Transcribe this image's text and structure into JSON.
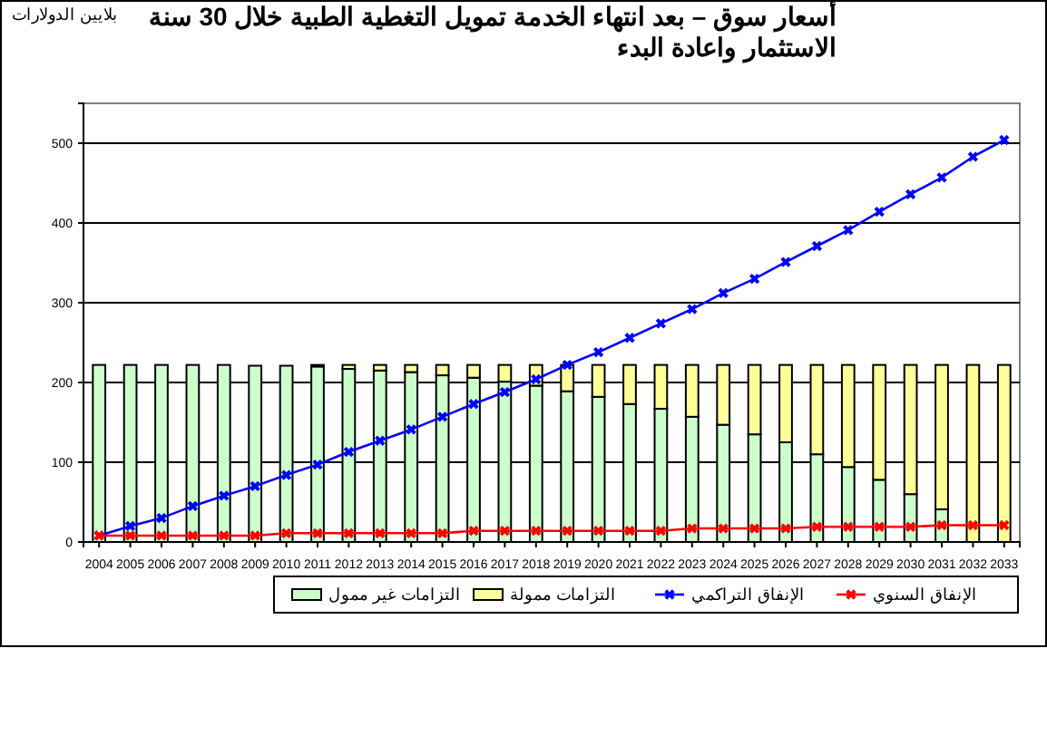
{
  "chart_data": {
    "type": "bar",
    "title": "أسعار سوق – بعد انتهاء الخدمة تمويل التغطية الطبية خلال 30 سنة الاستثمار واعادة البدء",
    "ylabel": "بلايين الدولارات",
    "categories": [
      "2004",
      "2005",
      "2006",
      "2007",
      "2008",
      "2009",
      "2010",
      "2011",
      "2012",
      "2013",
      "2014",
      "2015",
      "2016",
      "2017",
      "2018",
      "2019",
      "2020",
      "2021",
      "2022",
      "2023",
      "2024",
      "2025",
      "2026",
      "2027",
      "2028",
      "2029",
      "2030",
      "2031",
      "2032",
      "2033"
    ],
    "stacked": true,
    "series": [
      {
        "name": "التزامات غير ممول",
        "color": "#ccffcc",
        "values": [
          222,
          222,
          222,
          222,
          222,
          221,
          221,
          220,
          217,
          215,
          213,
          209,
          206,
          201,
          196,
          189,
          182,
          173,
          167,
          157,
          147,
          135,
          125,
          110,
          94,
          78,
          60,
          41,
          0,
          0
        ]
      },
      {
        "name": "التزامات ممولة",
        "color": "#ffff99",
        "values": [
          0,
          0,
          0,
          0,
          0,
          null,
          null,
          2,
          5,
          7,
          9,
          13,
          16,
          21,
          26,
          33,
          40,
          49,
          55,
          65,
          75,
          87,
          97,
          112,
          128,
          144,
          162,
          181,
          222,
          222
        ]
      },
      {
        "name": "الإنفاق التراكمي",
        "type": "line",
        "color": "#0000ff",
        "marker": "cross",
        "values": [
          8,
          20,
          30,
          45,
          58,
          70,
          84,
          97,
          113,
          127,
          141,
          157,
          173,
          188,
          204,
          222,
          238,
          256,
          274,
          292,
          312,
          330,
          351,
          371,
          391,
          414,
          436,
          457,
          483,
          504
        ]
      },
      {
        "name": "الإنفاق السنوي",
        "type": "line",
        "color": "#ff0000",
        "marker": "cross",
        "values": [
          8,
          8,
          8,
          8,
          8,
          8,
          11,
          11,
          11,
          11,
          11,
          11,
          14,
          14,
          14,
          14,
          14,
          14,
          14,
          17,
          17,
          17,
          17,
          19,
          19,
          19,
          19,
          21,
          21,
          21
        ]
      }
    ],
    "ylim": [
      0,
      550
    ],
    "yticks": [
      0,
      100,
      200,
      300,
      400,
      500
    ],
    "grid": "y",
    "legend": "bottom"
  }
}
